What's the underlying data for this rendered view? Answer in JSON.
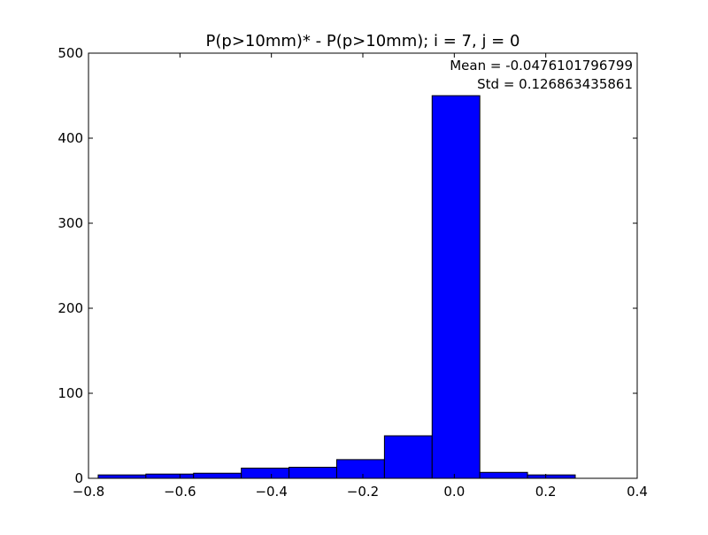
{
  "chart_data": {
    "type": "bar",
    "title": "P(p>10mm)* - P(p>10mm); i = 7, j = 0",
    "xlabel": "",
    "ylabel": "",
    "xlim": [
      -0.8,
      0.4
    ],
    "ylim": [
      0,
      500
    ],
    "x_ticks": [
      -0.8,
      -0.6,
      -0.4,
      -0.2,
      0.0,
      0.2,
      0.4
    ],
    "x_tick_labels": [
      "−0.8",
      "−0.6",
      "−0.4",
      "−0.2",
      "0.0",
      "0.2",
      "0.4"
    ],
    "y_ticks": [
      0,
      100,
      200,
      300,
      400,
      500
    ],
    "y_tick_labels": [
      "0",
      "100",
      "200",
      "300",
      "400",
      "500"
    ],
    "bins": [
      {
        "x0": -0.7788,
        "x1": -0.6745,
        "count": 4
      },
      {
        "x0": -0.6745,
        "x1": -0.5702,
        "count": 5
      },
      {
        "x0": -0.5702,
        "x1": -0.4658,
        "count": 6
      },
      {
        "x0": -0.4658,
        "x1": -0.3615,
        "count": 12
      },
      {
        "x0": -0.3615,
        "x1": -0.2572,
        "count": 13
      },
      {
        "x0": -0.2572,
        "x1": -0.1528,
        "count": 22
      },
      {
        "x0": -0.1528,
        "x1": -0.0485,
        "count": 50
      },
      {
        "x0": -0.0485,
        "x1": 0.0558,
        "count": 450
      },
      {
        "x0": 0.0558,
        "x1": 0.1601,
        "count": 7
      },
      {
        "x0": 0.1601,
        "x1": 0.2645,
        "count": 4
      }
    ],
    "grid": false,
    "bar_color": "#0000ff",
    "edge_color": "#000000",
    "annotations": [
      "Mean = -0.0476101796799",
      "Std = 0.126863435861"
    ]
  }
}
